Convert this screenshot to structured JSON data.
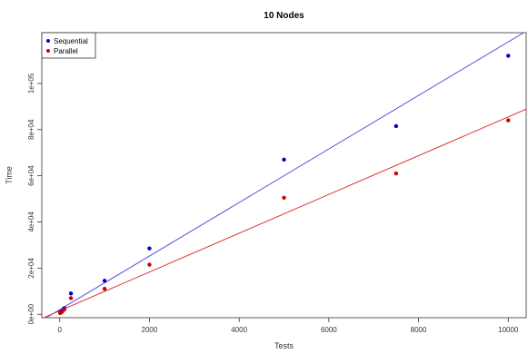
{
  "chart_data": {
    "type": "scatter",
    "title": "10 Nodes",
    "xlabel": "Tests",
    "ylabel": "Time",
    "xlim": [
      -400,
      10400
    ],
    "ylim": [
      -1500,
      122000
    ],
    "x_ticks": [
      0,
      2000,
      4000,
      6000,
      8000,
      10000
    ],
    "x_tick_labels": [
      "0",
      "2000",
      "4000",
      "6000",
      "8000",
      "10000"
    ],
    "y_ticks": [
      0,
      20000,
      40000,
      60000,
      80000,
      100000
    ],
    "y_tick_labels": [
      "0e+00",
      "2e+04",
      "4e+04",
      "6e+04",
      "8e+04",
      "1e+05"
    ],
    "legend_position": "top-left",
    "series": [
      {
        "name": "Sequential",
        "color": "#0000cc",
        "line_color": "#5555dd",
        "points": [
          {
            "x": 10,
            "y": 800
          },
          {
            "x": 50,
            "y": 1400
          },
          {
            "x": 100,
            "y": 2600
          },
          {
            "x": 250,
            "y": 9000
          },
          {
            "x": 1000,
            "y": 14500
          },
          {
            "x": 2000,
            "y": 28500
          },
          {
            "x": 5000,
            "y": 67000
          },
          {
            "x": 7500,
            "y": 81500
          },
          {
            "x": 10000,
            "y": 112000
          }
        ],
        "fit": {
          "intercept": 2000,
          "slope": 11.6
        }
      },
      {
        "name": "Parallel",
        "color": "#cc0000",
        "line_color": "#dd3333",
        "points": [
          {
            "x": 10,
            "y": 500
          },
          {
            "x": 50,
            "y": 1000
          },
          {
            "x": 100,
            "y": 2000
          },
          {
            "x": 250,
            "y": 7000
          },
          {
            "x": 1000,
            "y": 11000
          },
          {
            "x": 2000,
            "y": 21500
          },
          {
            "x": 5000,
            "y": 50500
          },
          {
            "x": 7500,
            "y": 61000
          },
          {
            "x": 10000,
            "y": 84000
          }
        ],
        "fit": {
          "intercept": 1500,
          "slope": 8.4
        }
      }
    ]
  }
}
